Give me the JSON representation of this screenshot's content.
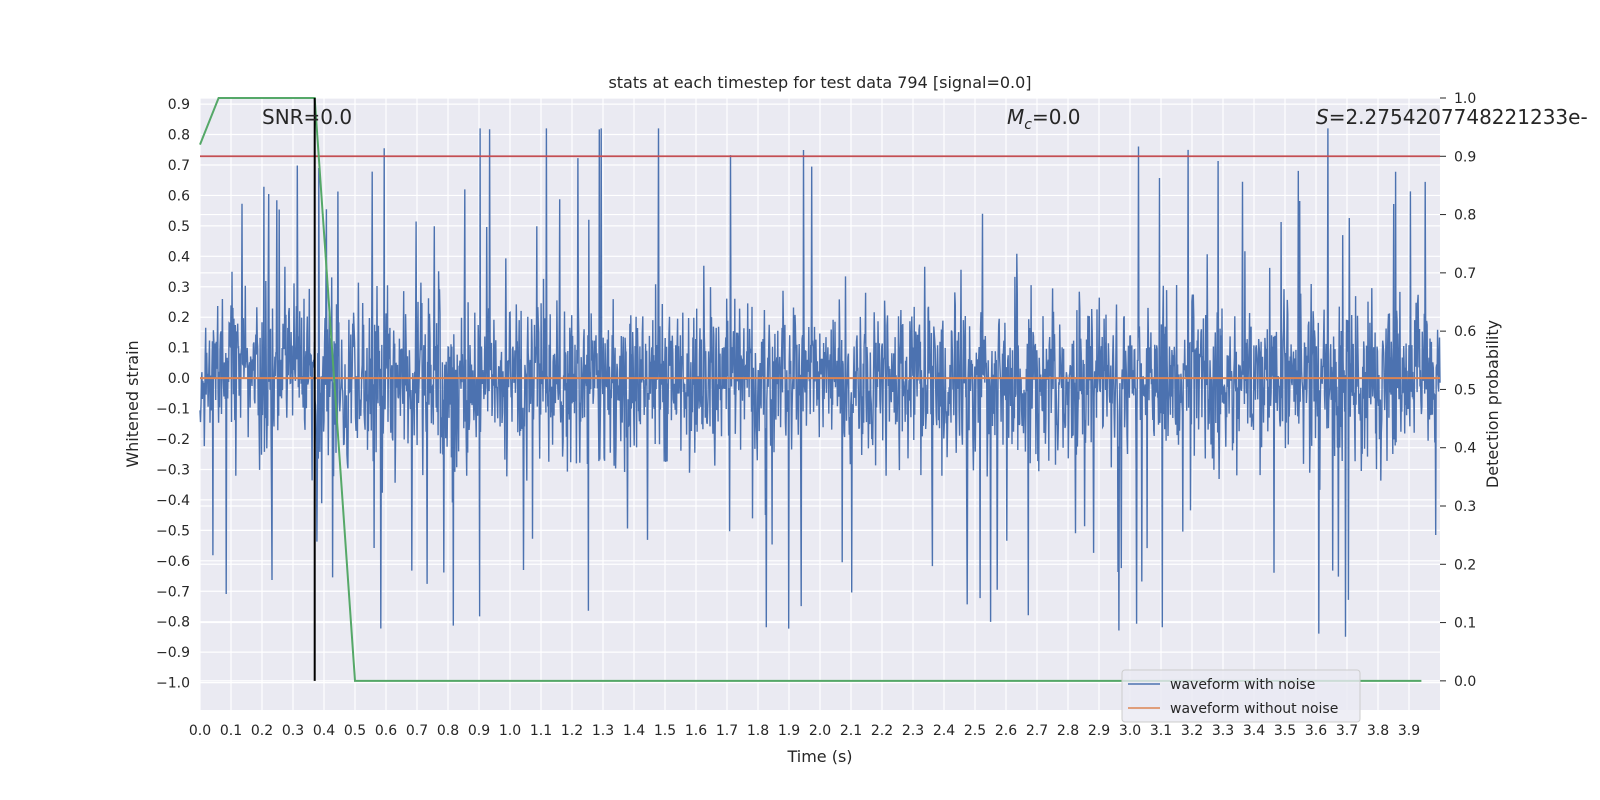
{
  "chart_data": {
    "type": "line",
    "title": "stats at each timestep for test data 794 [signal=0.0]",
    "xlabel": "Time (s)",
    "ylabel": "Whitened strain",
    "y2label": "Detection probability",
    "xlim": [
      0.0,
      4.0
    ],
    "ylim": [
      -1.09,
      0.92
    ],
    "y2lim": [
      -0.05,
      1.0
    ],
    "x_ticks": [
      "0.0",
      "0.1",
      "0.2",
      "0.3",
      "0.4",
      "0.5",
      "0.6",
      "0.7",
      "0.8",
      "0.9",
      "1.0",
      "1.1",
      "1.2",
      "1.3",
      "1.4",
      "1.5",
      "1.6",
      "1.7",
      "1.8",
      "1.9",
      "2.0",
      "2.1",
      "2.2",
      "2.3",
      "2.4",
      "2.5",
      "2.6",
      "2.7",
      "2.8",
      "2.9",
      "3.0",
      "3.1",
      "3.2",
      "3.3",
      "3.4",
      "3.5",
      "3.6",
      "3.7",
      "3.8",
      "3.9"
    ],
    "y_ticks": [
      "0.9",
      "0.8",
      "0.7",
      "0.6",
      "0.5",
      "0.4",
      "0.3",
      "0.2",
      "0.1",
      "0.0",
      "−0.1",
      "−0.2",
      "−0.3",
      "−0.4",
      "−0.5",
      "−0.6",
      "−0.7",
      "−0.8",
      "−0.9",
      "−1.0"
    ],
    "y2_ticks": [
      "1.0",
      "0.9",
      "0.8",
      "0.7",
      "0.6",
      "0.5",
      "0.4",
      "0.3",
      "0.2",
      "0.1",
      "0.0"
    ],
    "annotations": {
      "snr": "SNR=0.0",
      "mc": "=0.0",
      "mc_symbol": "M",
      "mc_sub": "c",
      "s": "=2.275420774822123​3e-",
      "s_symbol": "S"
    },
    "series": [
      {
        "name": "waveform with noise",
        "color": "#4c72b0",
        "kind": "noise",
        "amplitude_typical": 0.25,
        "amplitude_peak": 0.8,
        "x_range": [
          0.0,
          4.0
        ]
      },
      {
        "name": "waveform without noise",
        "color": "#dd8452",
        "kind": "constant",
        "value": 0.0,
        "x_range": [
          0.0,
          4.0
        ]
      }
    ],
    "detection_probability": {
      "color": "#55a868",
      "axis": "right",
      "x": [
        0.0,
        0.06,
        0.12,
        0.2,
        0.3,
        0.37,
        0.5,
        3.94
      ],
      "y": [
        0.92,
        1.0,
        1.0,
        1.0,
        1.0,
        1.0,
        0.0,
        0.0
      ]
    },
    "threshold": {
      "color": "#c44e52",
      "axis": "right",
      "value": 0.9
    },
    "marker_time": {
      "color": "#000000",
      "x": 0.37
    },
    "legend": {
      "position": "bottom-right",
      "entries": [
        "waveform with noise",
        "waveform without noise"
      ]
    },
    "grid": true
  }
}
